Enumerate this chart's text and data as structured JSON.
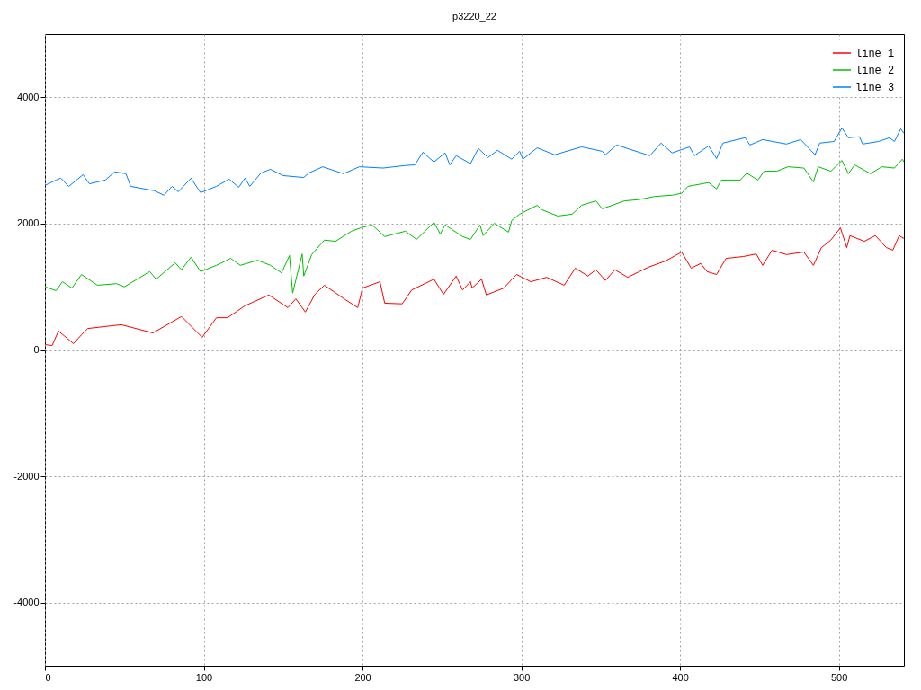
{
  "chart_data": {
    "type": "line",
    "title": "p3220_22",
    "xlim": [
      0,
      541
    ],
    "xticks": [
      0,
      100,
      200,
      300,
      400,
      500
    ],
    "ylim": [
      -5000,
      5000
    ],
    "yticks": [
      -4000,
      -2000,
      0,
      2000,
      4000
    ],
    "grid": true,
    "legend": "top right",
    "line_style": "solid",
    "marker": "none",
    "series": [
      {
        "name": "line 1",
        "color": "#ff0000",
        "x": [
          0,
          4.5,
          8.5,
          18,
          23,
          27,
          48,
          68,
          86,
          99,
          108,
          115,
          126,
          141,
          153,
          158,
          164,
          170,
          176,
          189,
          197,
          200,
          211,
          214,
          225,
          231,
          245,
          251,
          259,
          263,
          268,
          269,
          275,
          278,
          289,
          297,
          306,
          316,
          327,
          334,
          342,
          347,
          353,
          359,
          367,
          380,
          391,
          401,
          407,
          413,
          417,
          423,
          429,
          440,
          448,
          452,
          458,
          467,
          478,
          484,
          489,
          495,
          501,
          505,
          507,
          516,
          523,
          530,
          534,
          538,
          541
        ],
        "values": [
          85,
          70,
          300,
          100,
          240,
          340,
          400,
          270,
          530,
          200,
          510,
          510,
          700,
          870,
          670,
          810,
          600,
          880,
          1025,
          800,
          670,
          980,
          1080,
          740,
          730,
          950,
          1120,
          880,
          1170,
          950,
          1080,
          980,
          1120,
          870,
          980,
          1195,
          1080,
          1150,
          1025,
          1295,
          1170,
          1270,
          1100,
          1270,
          1150,
          1310,
          1410,
          1550,
          1295,
          1370,
          1240,
          1195,
          1450,
          1480,
          1520,
          1340,
          1580,
          1510,
          1550,
          1340,
          1620,
          1740,
          1935,
          1620,
          1810,
          1720,
          1810,
          1620,
          1580,
          1810,
          1765
        ]
      },
      {
        "name": "line 2",
        "color": "#00c000",
        "x": [
          0,
          7,
          11,
          17,
          23,
          33,
          45,
          50,
          66,
          70,
          82,
          86,
          92,
          98,
          108,
          117,
          123,
          134,
          142,
          149,
          154,
          156,
          162,
          163,
          168,
          176,
          183,
          193,
          199,
          206,
          214,
          227,
          234,
          245,
          249,
          252,
          263,
          268,
          274,
          276,
          283,
          292,
          294,
          299,
          310,
          313,
          323,
          332,
          338,
          347,
          351,
          365,
          374,
          384,
          395,
          401,
          405,
          418,
          423,
          426,
          438,
          442,
          449,
          453,
          461,
          468,
          478,
          484,
          487,
          495,
          502,
          506,
          510,
          520,
          527,
          535,
          540,
          541
        ],
        "values": [
          1000,
          940,
          1080,
          980,
          1195,
          1025,
          1050,
          1000,
          1240,
          1120,
          1380,
          1270,
          1470,
          1240,
          1340,
          1450,
          1340,
          1420,
          1340,
          1220,
          1495,
          900,
          1520,
          1170,
          1510,
          1740,
          1720,
          1880,
          1935,
          1980,
          1795,
          1880,
          1750,
          2020,
          1835,
          1980,
          1795,
          1750,
          1980,
          1810,
          2005,
          1865,
          2050,
          2150,
          2290,
          2220,
          2120,
          2150,
          2290,
          2360,
          2235,
          2360,
          2380,
          2430,
          2450,
          2480,
          2590,
          2650,
          2550,
          2690,
          2690,
          2800,
          2690,
          2830,
          2830,
          2900,
          2880,
          2660,
          2900,
          2830,
          3000,
          2790,
          2930,
          2790,
          2900,
          2880,
          3020,
          2975
        ]
      },
      {
        "name": "line 3",
        "color": "#0080ff",
        "x": [
          0,
          7,
          10,
          15,
          24,
          28,
          38,
          44,
          51,
          54,
          69,
          75,
          80,
          84,
          92,
          98,
          108,
          116,
          122,
          126,
          129,
          136,
          142,
          150,
          163,
          166,
          175,
          188,
          198,
          213,
          227,
          233,
          238,
          245,
          252,
          255,
          259,
          268,
          273,
          279,
          285,
          294,
          299,
          301,
          310,
          321,
          338,
          351,
          353,
          360,
          381,
          388,
          395,
          406,
          409,
          418,
          423,
          427,
          441,
          444,
          452,
          467,
          476,
          485,
          488,
          497,
          502,
          506,
          513,
          515,
          525,
          532,
          535,
          539,
          541
        ],
        "values": [
          2605,
          2690,
          2720,
          2590,
          2775,
          2630,
          2690,
          2820,
          2790,
          2590,
          2520,
          2450,
          2590,
          2505,
          2720,
          2490,
          2590,
          2705,
          2575,
          2720,
          2590,
          2800,
          2860,
          2760,
          2730,
          2800,
          2900,
          2790,
          2900,
          2880,
          2920,
          2930,
          3130,
          2975,
          3120,
          2930,
          3075,
          2950,
          3190,
          3045,
          3160,
          3020,
          3145,
          3020,
          3200,
          3090,
          3215,
          3145,
          3090,
          3245,
          3075,
          3275,
          3120,
          3215,
          3075,
          3230,
          3030,
          3275,
          3360,
          3245,
          3330,
          3260,
          3330,
          3090,
          3275,
          3300,
          3515,
          3360,
          3375,
          3260,
          3300,
          3360,
          3300,
          3500,
          3430
        ]
      }
    ]
  }
}
